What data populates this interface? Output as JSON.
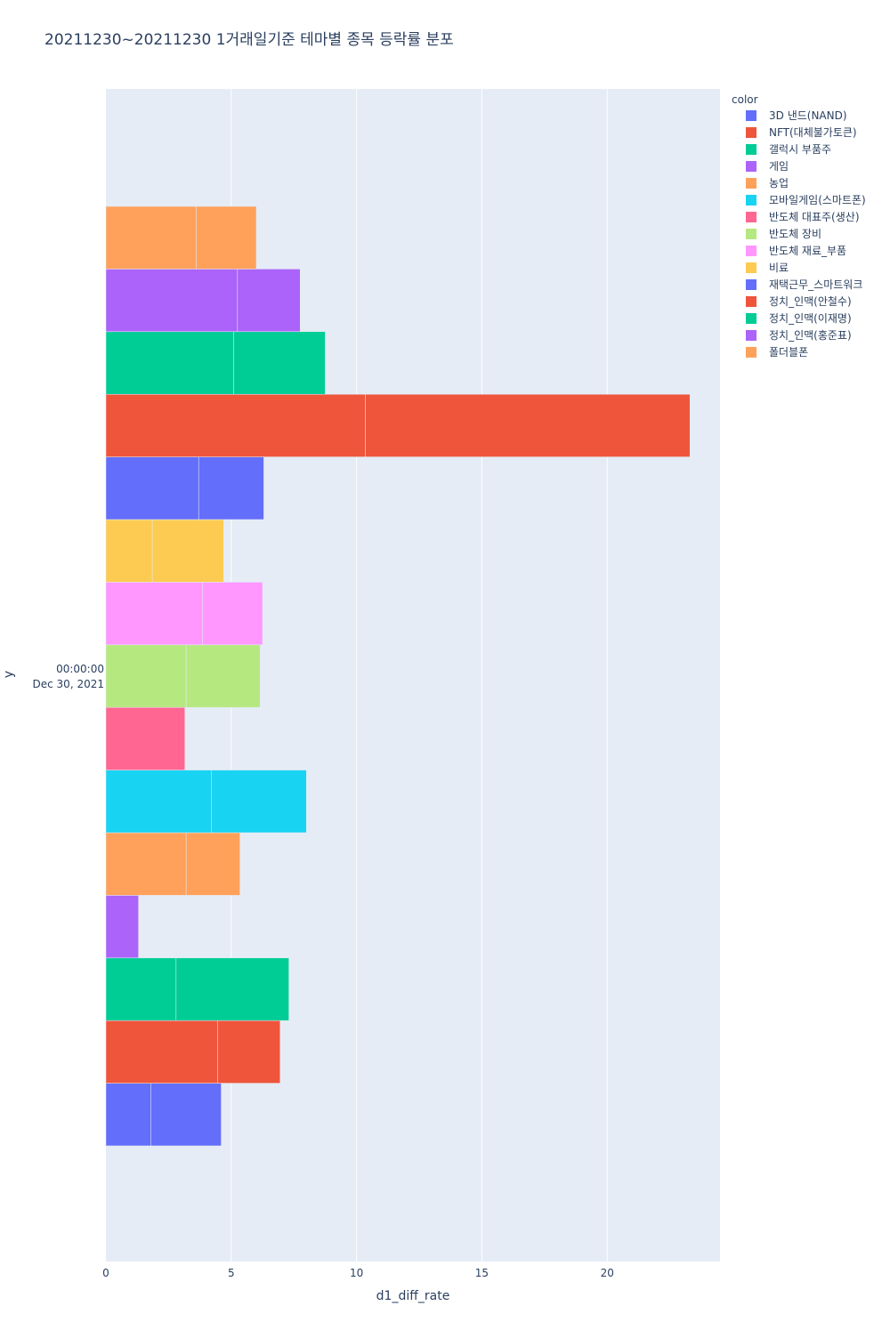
{
  "chart_data": {
    "type": "bar",
    "orientation": "horizontal",
    "barmode": "stack",
    "title": "20211230~20211230 1거래일기준 테마별 종목 등락률 분포",
    "xlabel": "d1_diff_rate",
    "ylabel": "y",
    "y_tick_label_line1": "00:00:00",
    "y_tick_label_line2": "Dec 30, 2021",
    "xlim": [
      0,
      24.5
    ],
    "x_ticks": [
      0,
      5,
      10,
      15,
      20
    ],
    "x_tick_labels": [
      "0",
      "5",
      "10",
      "15",
      "20"
    ],
    "grid": true,
    "legend_title": "color",
    "legend_position": "top-right",
    "series": [
      {
        "name": "3D 낸드(NAND)",
        "color": "#636efa",
        "segments": [
          1.8,
          2.8
        ]
      },
      {
        "name": "NFT(대체불가토큰)",
        "color": "#ef553b",
        "segments": [
          4.45,
          2.5
        ]
      },
      {
        "name": "갤럭시 부품주",
        "color": "#00cc96",
        "segments": [
          2.8,
          4.5
        ]
      },
      {
        "name": "게임",
        "color": "#ab63fa",
        "segments": [
          1.3
        ]
      },
      {
        "name": "농업",
        "color": "#ffa15a",
        "segments": [
          3.2,
          2.15
        ]
      },
      {
        "name": "모바일게임(스마트폰)",
        "color": "#19d3f3",
        "segments": [
          4.2,
          3.8
        ]
      },
      {
        "name": "반도체 대표주(생산)",
        "color": "#ff6692",
        "segments": [
          3.15
        ]
      },
      {
        "name": "반도체 장비",
        "color": "#b6e880",
        "segments": [
          3.2,
          2.95
        ]
      },
      {
        "name": "반도체 재료_부품",
        "color": "#ff97ff",
        "segments": [
          3.85,
          2.4
        ]
      },
      {
        "name": "비료",
        "color": "#fecb52",
        "segments": [
          1.85,
          2.85
        ]
      },
      {
        "name": "재택근무_스마트워크",
        "color": "#636efa",
        "segments": [
          3.7,
          2.6
        ]
      },
      {
        "name": "정치_인맥(안철수)",
        "color": "#ef553b",
        "segments": [
          10.35,
          12.95
        ]
      },
      {
        "name": "정치_인맥(이재명)",
        "color": "#00cc96",
        "segments": [
          5.1,
          3.65
        ]
      },
      {
        "name": "정치_인맥(홍준표)",
        "color": "#ab63fa",
        "segments": [
          5.25,
          2.5
        ]
      },
      {
        "name": "폴더블폰",
        "color": "#ffa15a",
        "segments": [
          3.6,
          2.4
        ]
      }
    ]
  }
}
